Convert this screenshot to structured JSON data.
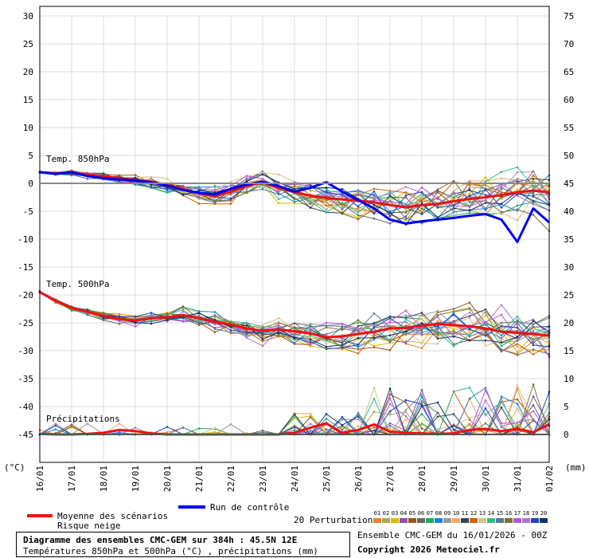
{
  "chart_data": {
    "type": "line",
    "title": "Diagramme des ensembles CMC-GEM sur 384h : 45.5N 12E",
    "subtitle": "Températures 850hPa et 500hPa (°C) , précipitations (mm)",
    "run_info": "Ensemble CMC-GEM du 16/01/2026 - 00Z",
    "copyright": "Copyright 2026 Meteociel.fr",
    "left_axis_unit": "(°C)",
    "right_axis_unit": "(mm)",
    "left_ticks": [
      30,
      25,
      20,
      15,
      10,
      5,
      0,
      -5,
      -10,
      -15,
      -20,
      -25,
      -30,
      -35,
      -40,
      -45
    ],
    "right_ticks": [
      75,
      70,
      65,
      60,
      55,
      50,
      45,
      40,
      35,
      30,
      25,
      20,
      15,
      10,
      5,
      0
    ],
    "ylim": [
      -45,
      30
    ],
    "precip_ylim": [
      0,
      75
    ],
    "x_tick_labels": [
      "16/01",
      "17/01",
      "18/01",
      "19/01",
      "20/01",
      "21/01",
      "22/01",
      "23/01",
      "24/01",
      "25/01",
      "26/01",
      "27/01",
      "28/01",
      "29/01",
      "30/01",
      "31/01",
      "01/02"
    ],
    "panel_labels": {
      "t850": "Temp. 850hPa",
      "t500": "Temp. 500hPa",
      "precip": "Précipitations"
    },
    "legend": {
      "mean": "Moyenne des scénarios",
      "snow": "Risque neige",
      "control": "Run de contrôle",
      "perturbations": "20 Perturbations",
      "perturbation_numbers": [
        "01",
        "02",
        "03",
        "04",
        "05",
        "06",
        "07",
        "08",
        "09",
        "10",
        "11",
        "12",
        "13",
        "14",
        "15",
        "16",
        "17",
        "18",
        "19",
        "20"
      ]
    },
    "colors": {
      "mean": "#ee1111",
      "control": "#0000ee",
      "perturbations": [
        "#e8832a",
        "#aaaa55",
        "#ddbb00",
        "#8855aa",
        "#995522",
        "#666666",
        "#22aa55",
        "#1188dd",
        "#999999",
        "#eeaa66",
        "#334455",
        "#cc6600",
        "#d4c38a",
        "#33bb88",
        "#557799",
        "#777733",
        "#bb55dd",
        "#aa77cc",
        "#2244bb",
        "#113366"
      ]
    },
    "series": [
      {
        "role": "mean",
        "group": "t850",
        "x": [
          0,
          12,
          24,
          36,
          48,
          60,
          72,
          84,
          96,
          108,
          120,
          132,
          144,
          156,
          168,
          180,
          192,
          204,
          216,
          228,
          240,
          252,
          264,
          276,
          288,
          300,
          312,
          324,
          336,
          348,
          360,
          372,
          384
        ],
        "y": [
          2.0,
          1.8,
          1.9,
          1.6,
          1.2,
          1.0,
          0.6,
          0.3,
          -0.3,
          -1.0,
          -1.8,
          -2.3,
          -1.5,
          -0.5,
          0.2,
          -0.8,
          -1.6,
          -2.2,
          -2.6,
          -2.9,
          -3.1,
          -3.4,
          -3.9,
          -4.3,
          -3.9,
          -3.7,
          -3.2,
          -2.8,
          -2.5,
          -2.1,
          -1.6,
          -1.3,
          -1.6
        ]
      },
      {
        "role": "control",
        "group": "t850",
        "x": [
          0,
          12,
          24,
          36,
          48,
          60,
          72,
          84,
          96,
          108,
          120,
          132,
          144,
          156,
          168,
          180,
          192,
          204,
          216,
          228,
          240,
          252,
          264,
          276,
          288,
          300,
          312,
          324,
          336,
          348,
          360,
          372,
          384
        ],
        "y": [
          2.0,
          1.7,
          2.0,
          1.3,
          0.9,
          0.7,
          0.5,
          0.2,
          -0.4,
          -1.2,
          -1.7,
          -2.0,
          -1.0,
          -0.2,
          0.3,
          -0.5,
          -1.5,
          -0.8,
          0.2,
          -1.5,
          -3.0,
          -4.5,
          -6.5,
          -7.2,
          -6.8,
          -6.5,
          -6.2,
          -5.8,
          -5.5,
          -6.5,
          -10.5,
          -4.5,
          -7.0
        ]
      },
      {
        "role": "mean",
        "group": "t500",
        "x": [
          0,
          12,
          24,
          36,
          48,
          60,
          72,
          84,
          96,
          108,
          120,
          132,
          144,
          156,
          168,
          180,
          192,
          204,
          216,
          228,
          240,
          252,
          264,
          276,
          288,
          300,
          312,
          324,
          336,
          348,
          360,
          372,
          384
        ],
        "y": [
          -19.5,
          -21.0,
          -22.3,
          -23.0,
          -23.8,
          -24.3,
          -24.6,
          -24.2,
          -24.0,
          -23.6,
          -24.2,
          -24.8,
          -25.3,
          -26.0,
          -26.4,
          -26.2,
          -26.5,
          -26.9,
          -27.6,
          -27.4,
          -27.0,
          -26.6,
          -26.0,
          -25.9,
          -25.5,
          -25.2,
          -25.4,
          -25.6,
          -26.0,
          -26.6,
          -26.8,
          -27.0,
          -27.3
        ]
      },
      {
        "role": "mean",
        "group": "precip",
        "x": [
          0,
          12,
          24,
          36,
          48,
          60,
          72,
          84,
          96,
          108,
          120,
          132,
          144,
          156,
          168,
          180,
          192,
          204,
          216,
          228,
          240,
          252,
          264,
          276,
          288,
          300,
          312,
          324,
          336,
          348,
          360,
          372,
          384
        ],
        "y": [
          0.1,
          0,
          0,
          0.1,
          0.3,
          0.8,
          0.6,
          0.2,
          0,
          0,
          0,
          0,
          0,
          0,
          0,
          0,
          0.3,
          1.2,
          2.0,
          0.3,
          0.8,
          1.8,
          0.5,
          0.3,
          0.2,
          0.1,
          0.2,
          0.8,
          1.0,
          0.6,
          1.0,
          0.4,
          1.8
        ]
      }
    ]
  }
}
